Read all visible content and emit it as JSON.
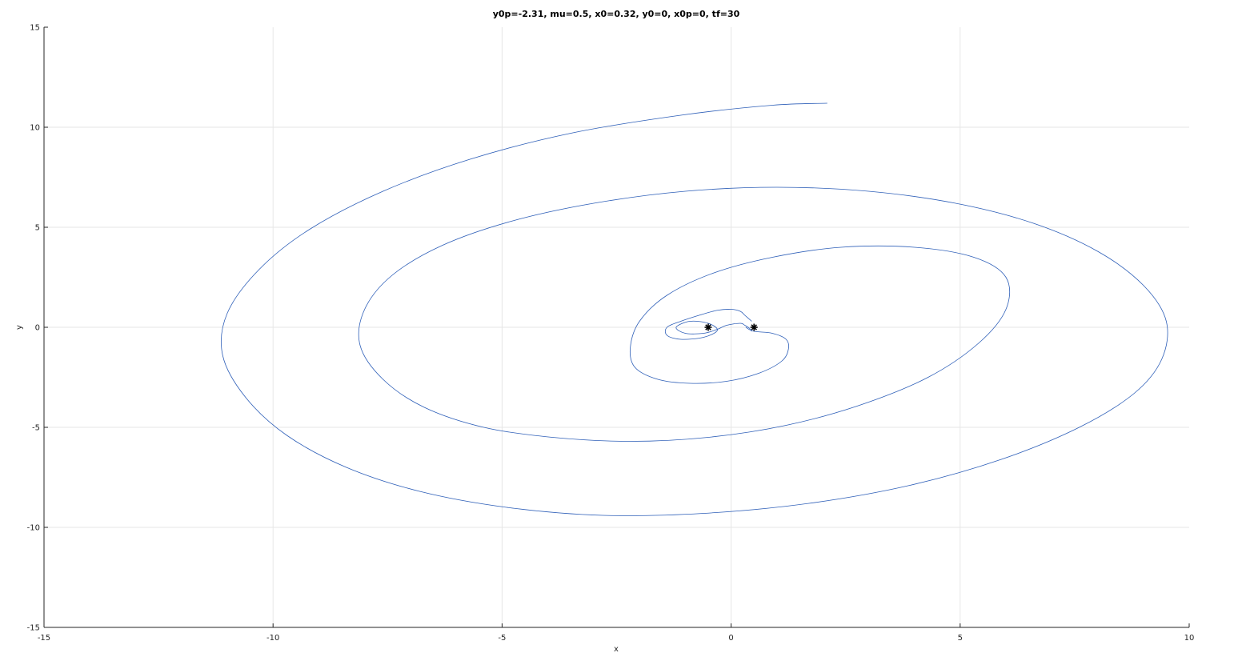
{
  "chart_data": {
    "type": "line",
    "title": "y0p=-2.31, mu=0.5, x0=0.32, y0=0, x0p=0, tf=30",
    "xlabel": "x",
    "ylabel": "y",
    "xlim": [
      -15,
      10
    ],
    "ylim": [
      -15,
      15
    ],
    "xticks": [
      -15,
      -10,
      -5,
      0,
      5,
      10
    ],
    "yticks": [
      -15,
      -10,
      -5,
      0,
      5,
      10,
      15
    ],
    "xtick_labels": [
      "-15",
      "-10",
      "-5",
      "0",
      "5",
      "10"
    ],
    "ytick_labels": [
      "-15",
      "-10",
      "-5",
      "0",
      "5",
      "10",
      "15"
    ],
    "grid": true,
    "series": [
      {
        "color": "#2e5fb8",
        "x": [
          0.32,
          0.5,
          0.9,
          1.2,
          1.25,
          1.1,
          0.6,
          -0.1,
          -0.9,
          -1.6,
          -2.1,
          -2.2,
          -2.0,
          -1.4,
          -0.4,
          0.9,
          2.4,
          4.0,
          5.3,
          6.0,
          6.0,
          5.4,
          4.3,
          2.8,
          1.2,
          -0.5,
          -2.2,
          -3.9,
          -5.4,
          -6.7,
          -7.6,
          -8.1,
          -8.0,
          -7.4,
          -6.3,
          -4.8,
          -3.0,
          -1.0,
          1.0,
          3.0,
          4.9,
          6.6,
          8.0,
          9.0,
          9.5,
          9.4,
          8.8,
          7.6,
          5.9,
          3.9,
          1.7,
          -0.6,
          -2.8,
          -4.9,
          -6.8,
          -8.4,
          -9.7,
          -10.6,
          -11.1,
          -11.0,
          -10.3,
          -9.2,
          -7.6,
          -5.7,
          -3.5,
          -1.1,
          0.9,
          2.1
        ],
        "y": [
          0,
          -0.2,
          -0.3,
          -0.6,
          -1.1,
          -1.7,
          -2.3,
          -2.7,
          -2.8,
          -2.6,
          -2.0,
          -1.0,
          0.3,
          1.6,
          2.7,
          3.5,
          4.0,
          4.0,
          3.5,
          2.5,
          0.9,
          -0.8,
          -2.5,
          -3.9,
          -4.9,
          -5.5,
          -5.7,
          -5.5,
          -5.0,
          -4.0,
          -2.6,
          -0.9,
          0.9,
          2.6,
          4.1,
          5.3,
          6.2,
          6.8,
          7.0,
          6.8,
          6.2,
          5.2,
          3.8,
          2.1,
          0.3,
          -1.6,
          -3.3,
          -5.0,
          -6.6,
          -7.9,
          -8.8,
          -9.3,
          -9.4,
          -9.0,
          -8.2,
          -7.0,
          -5.4,
          -3.5,
          -1.4,
          0.7,
          2.9,
          4.9,
          6.8,
          8.4,
          9.7,
          10.6,
          11.1,
          11.2
        ]
      },
      {
        "color": "#2e5fb8",
        "x": [
          0.45,
          0.3,
          0.2,
          0.0,
          -0.3,
          -0.7,
          -1.1,
          -1.4,
          -1.4,
          -1.1,
          -0.6,
          -0.3,
          -0.5,
          -0.9,
          -1.2,
          -1.0,
          -0.6,
          -0.3,
          -0.1,
          0.2,
          0.3,
          0.4,
          0.45
        ],
        "y": [
          0.3,
          0.6,
          0.8,
          0.9,
          0.85,
          0.6,
          0.3,
          0.0,
          -0.4,
          -0.6,
          -0.5,
          -0.15,
          0.2,
          0.3,
          0.0,
          -0.3,
          -0.3,
          -0.1,
          0.1,
          0.2,
          0.1,
          -0.05,
          -0.2
        ]
      }
    ],
    "markers": [
      {
        "name": "primary-body",
        "x": -0.5,
        "y": 0,
        "symbol": "*",
        "color": "#000000"
      },
      {
        "name": "secondary-body",
        "x": 0.5,
        "y": 0,
        "symbol": "*",
        "color": "#000000"
      }
    ]
  }
}
